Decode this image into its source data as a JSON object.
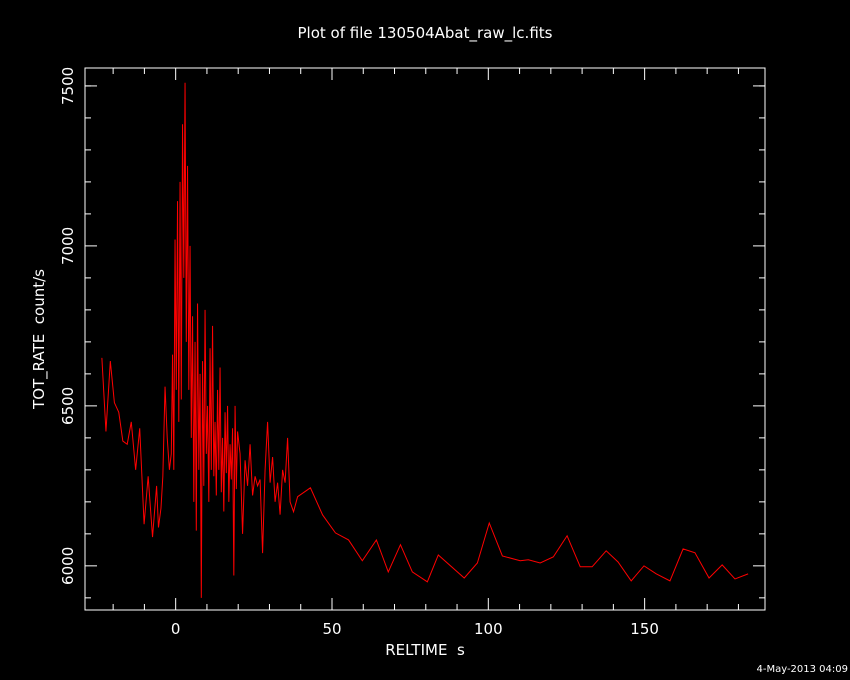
{
  "chart_data": {
    "type": "line",
    "title": "Plot of file 130504Abat_raw_lc.fits",
    "x_label": "RELTIME  s",
    "y_label": "TOT_RATE  count/s",
    "footer": "4-May-2013 04:09",
    "color": "#ff0000",
    "xlim": [
      -29,
      188.5
    ],
    "ylim": [
      5862,
      7556
    ],
    "xticks": [
      0,
      50,
      100,
      150
    ],
    "yticks": [
      6000,
      6500,
      7000,
      7500
    ],
    "x_minor_ticks": [
      -20,
      -10,
      10,
      20,
      30,
      40,
      60,
      70,
      80,
      90,
      110,
      120,
      130,
      140,
      160,
      170,
      180
    ],
    "y_minor_ticks": [
      5900,
      6100,
      6200,
      6300,
      6400,
      6600,
      6700,
      6800,
      6900,
      7100,
      7200,
      7300,
      7400,
      7500
    ],
    "x": [
      -23.6,
      -22.3,
      -20.9,
      -19.6,
      -18.2,
      -16.9,
      -15.5,
      -14.2,
      -12.8,
      -11.5,
      -10.1,
      -8.8,
      -7.4,
      -6.1,
      -5.5,
      -4.7,
      -4.1,
      -3.4,
      -2.7,
      -2.0,
      -1.4,
      -1.0,
      -0.6,
      -0.2,
      0.2,
      0.6,
      1.0,
      1.4,
      1.8,
      2.2,
      2.6,
      3.0,
      3.4,
      3.8,
      4.2,
      4.6,
      5.0,
      5.4,
      5.8,
      6.2,
      6.6,
      7.0,
      7.4,
      7.8,
      8.2,
      8.6,
      9.0,
      9.4,
      9.8,
      10.2,
      10.6,
      11.0,
      11.4,
      11.8,
      12.2,
      12.6,
      13.0,
      13.4,
      13.8,
      14.2,
      14.6,
      15.0,
      15.4,
      15.8,
      16.2,
      16.6,
      17.0,
      17.4,
      17.8,
      18.2,
      18.6,
      19.0,
      19.4,
      19.8,
      20.6,
      21.4,
      22.2,
      23.0,
      23.8,
      24.6,
      25.4,
      26.2,
      27.0,
      27.8,
      28.6,
      29.4,
      30.2,
      31.0,
      31.8,
      32.6,
      33.4,
      34.2,
      35.0,
      35.8,
      36.6,
      37.7,
      39.0,
      43.1,
      47.0,
      51.1,
      55.3,
      59.7,
      64.2,
      68.0,
      71.9,
      75.7,
      80.5,
      84.0,
      92.3,
      96.5,
      100.3,
      104.5,
      110.2,
      112.8,
      116.6,
      120.8,
      125.2,
      129.4,
      133.2,
      137.7,
      141.5,
      145.7,
      149.8,
      153.7,
      158.1,
      162.3,
      166.1,
      170.6,
      174.8,
      178.9,
      183.1
    ],
    "values": [
      6650,
      6420,
      6640,
      6510,
      6480,
      6390,
      6380,
      6450,
      6300,
      6430,
      6130,
      6280,
      6090,
      6250,
      6120,
      6180,
      6280,
      6560,
      6400,
      6300,
      6350,
      6660,
      6300,
      7020,
      6550,
      7140,
      6450,
      7200,
      6520,
      7380,
      6900,
      7510,
      6700,
      7250,
      6550,
      7000,
      6400,
      6780,
      6200,
      6700,
      6110,
      6820,
      6300,
      6600,
      5900,
      6640,
      6250,
      6800,
      6350,
      6500,
      6200,
      6680,
      6300,
      6750,
      6280,
      6450,
      6220,
      6550,
      6300,
      6620,
      6230,
      6400,
      6170,
      6480,
      6290,
      6500,
      6200,
      6380,
      6270,
      6430,
      5970,
      6500,
      6240,
      6420,
      6350,
      6100,
      6330,
      6250,
      6380,
      6220,
      6280,
      6250,
      6270,
      6040,
      6300,
      6450,
      6260,
      6340,
      6200,
      6260,
      6160,
      6300,
      6260,
      6400,
      6200,
      6169,
      6216,
      6244,
      6159,
      6103,
      6081,
      6016,
      6081,
      5981,
      6066,
      5981,
      5950,
      6034,
      5962,
      6009,
      6134,
      6031,
      6016,
      6019,
      6009,
      6028,
      6094,
      5997,
      5997,
      6047,
      6012,
      5953,
      6000,
      5975,
      5953,
      6053,
      6041,
      5962,
      6003,
      5959,
      5975
    ]
  }
}
